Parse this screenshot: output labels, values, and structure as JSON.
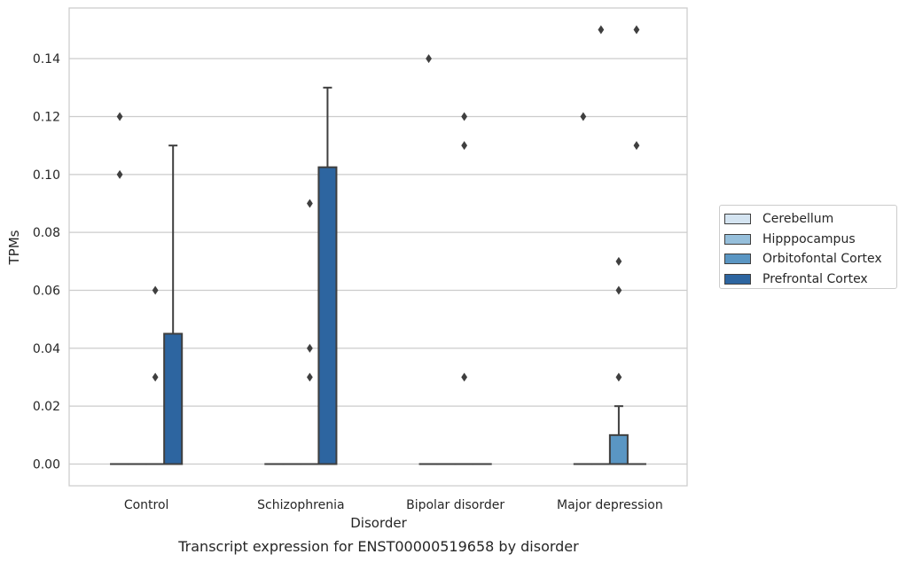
{
  "chart_data": {
    "type": "box",
    "title": "Transcript expression for ENST00000519658 by disorder",
    "xlabel": "Disorder",
    "ylabel": "TPMs",
    "ylim": [
      -0.0075,
      0.1575
    ],
    "yticks": [
      0.0,
      0.02,
      0.04,
      0.06,
      0.08,
      0.1,
      0.12,
      0.14
    ],
    "ytick_labels": [
      "0.00",
      "0.02",
      "0.04",
      "0.06",
      "0.08",
      "0.10",
      "0.12",
      "0.14"
    ],
    "categories": [
      "Control",
      "Schizophrenia",
      "Bipolar disorder",
      "Major depression"
    ],
    "grid": "horizontal",
    "legend_position": "right",
    "series": [
      {
        "name": "Cerebellum",
        "color": "#d4e4f1",
        "boxes": [
          {
            "q1": 0,
            "median": 0,
            "q3": 0,
            "whisker_low": 0,
            "whisker_high": 0,
            "outliers": [
              0.1,
              0.12
            ]
          },
          {
            "q1": 0,
            "median": 0,
            "q3": 0,
            "whisker_low": 0,
            "whisker_high": 0,
            "outliers": []
          },
          {
            "q1": 0,
            "median": 0,
            "q3": 0,
            "whisker_low": 0,
            "whisker_high": 0,
            "outliers": [
              0.14
            ]
          },
          {
            "q1": 0,
            "median": 0,
            "q3": 0,
            "whisker_low": 0,
            "whisker_high": 0,
            "outliers": [
              0.12
            ]
          }
        ]
      },
      {
        "name": "Hipppocampus",
        "color": "#96bfdb",
        "boxes": [
          {
            "q1": 0,
            "median": 0,
            "q3": 0,
            "whisker_low": 0,
            "whisker_high": 0,
            "outliers": []
          },
          {
            "q1": 0,
            "median": 0,
            "q3": 0,
            "whisker_low": 0,
            "whisker_high": 0,
            "outliers": []
          },
          {
            "q1": 0,
            "median": 0,
            "q3": 0,
            "whisker_low": 0,
            "whisker_high": 0,
            "outliers": []
          },
          {
            "q1": 0,
            "median": 0,
            "q3": 0,
            "whisker_low": 0,
            "whisker_high": 0,
            "outliers": [
              0.15
            ]
          }
        ]
      },
      {
        "name": "Orbitofontal Cortex",
        "color": "#5a96c3",
        "boxes": [
          {
            "q1": 0,
            "median": 0,
            "q3": 0,
            "whisker_low": 0,
            "whisker_high": 0,
            "outliers": [
              0.03,
              0.06
            ]
          },
          {
            "q1": 0,
            "median": 0,
            "q3": 0,
            "whisker_low": 0,
            "whisker_high": 0,
            "outliers": [
              0.03,
              0.04,
              0.09
            ]
          },
          {
            "q1": 0,
            "median": 0,
            "q3": 0,
            "whisker_low": 0,
            "whisker_high": 0,
            "outliers": [
              0.03,
              0.11,
              0.12
            ]
          },
          {
            "q1": 0,
            "median": 0,
            "q3": 0.01,
            "whisker_low": 0,
            "whisker_high": 0.02,
            "outliers": [
              0.03,
              0.06,
              0.07
            ]
          }
        ]
      },
      {
        "name": "Prefrontal Cortex",
        "color": "#2d65a0",
        "boxes": [
          {
            "q1": 0,
            "median": 0,
            "q3": 0.045,
            "whisker_low": 0,
            "whisker_high": 0.11,
            "outliers": []
          },
          {
            "q1": 0,
            "median": 0,
            "q3": 0.1025,
            "whisker_low": 0,
            "whisker_high": 0.13,
            "outliers": []
          },
          {
            "q1": 0,
            "median": 0,
            "q3": 0,
            "whisker_low": 0,
            "whisker_high": 0,
            "outliers": []
          },
          {
            "q1": 0,
            "median": 0,
            "q3": 0,
            "whisker_low": 0,
            "whisker_high": 0,
            "outliers": [
              0.11,
              0.15
            ]
          }
        ]
      }
    ]
  }
}
